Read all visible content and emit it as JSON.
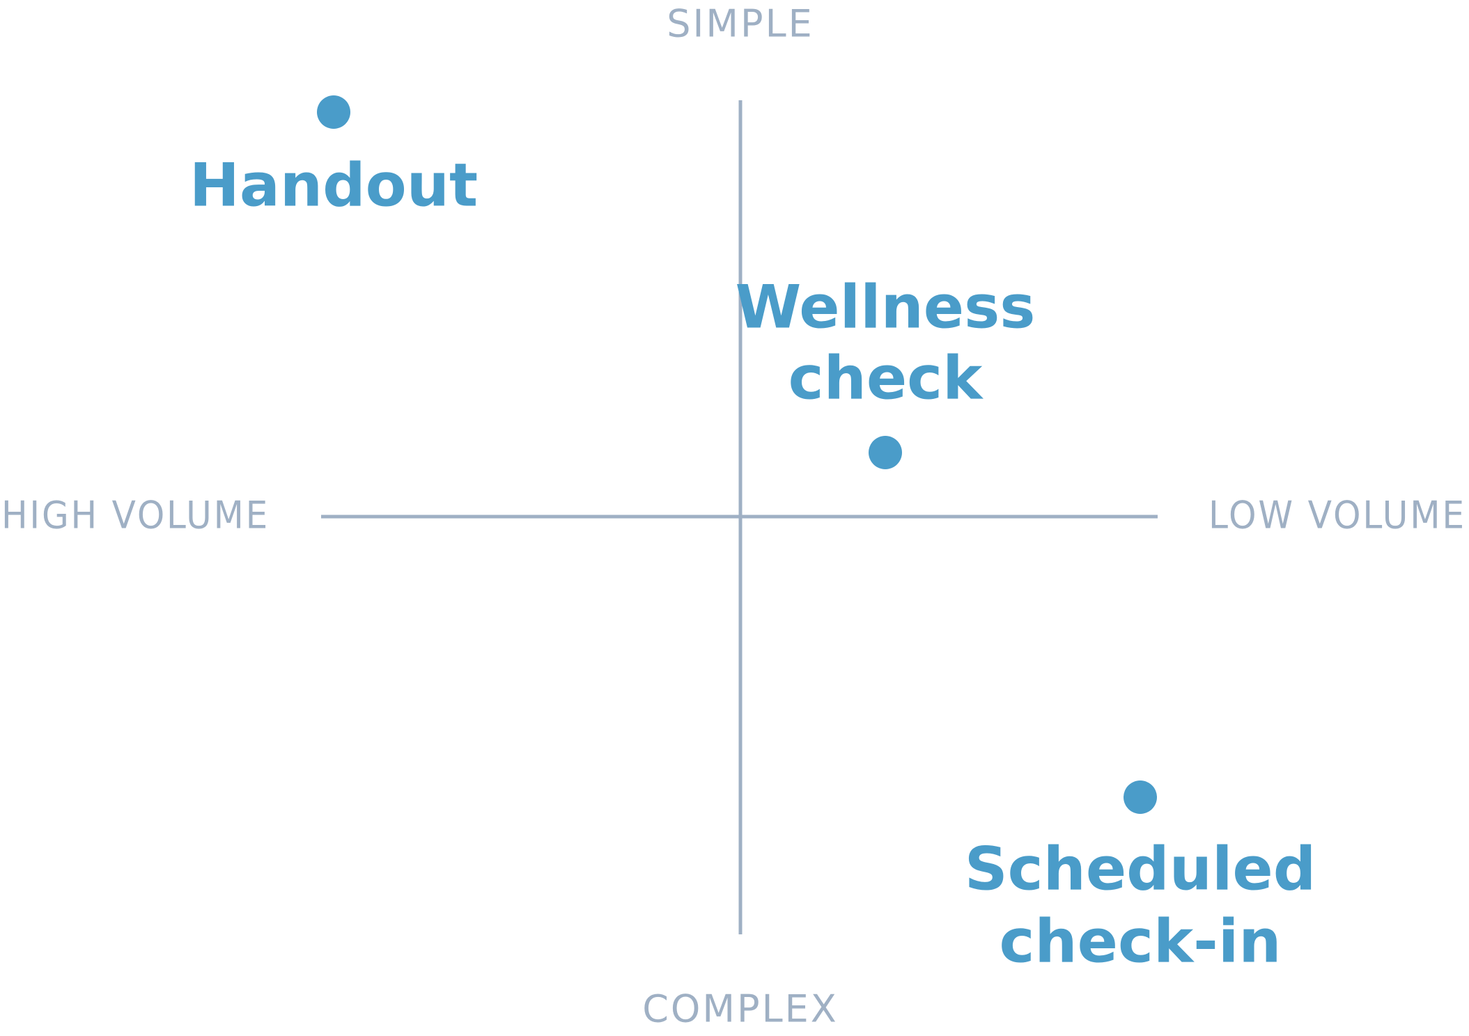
{
  "axes": {
    "top": "SIMPLE",
    "bottom": "COMPLEX",
    "left": "HIGH VOLUME",
    "right": "LOW VOLUME"
  },
  "nodes": [
    {
      "lines": [
        "Handout"
      ]
    },
    {
      "lines": [
        "Wellness",
        "check"
      ]
    },
    {
      "lines": [
        "Scheduled",
        "check-in"
      ]
    }
  ]
}
